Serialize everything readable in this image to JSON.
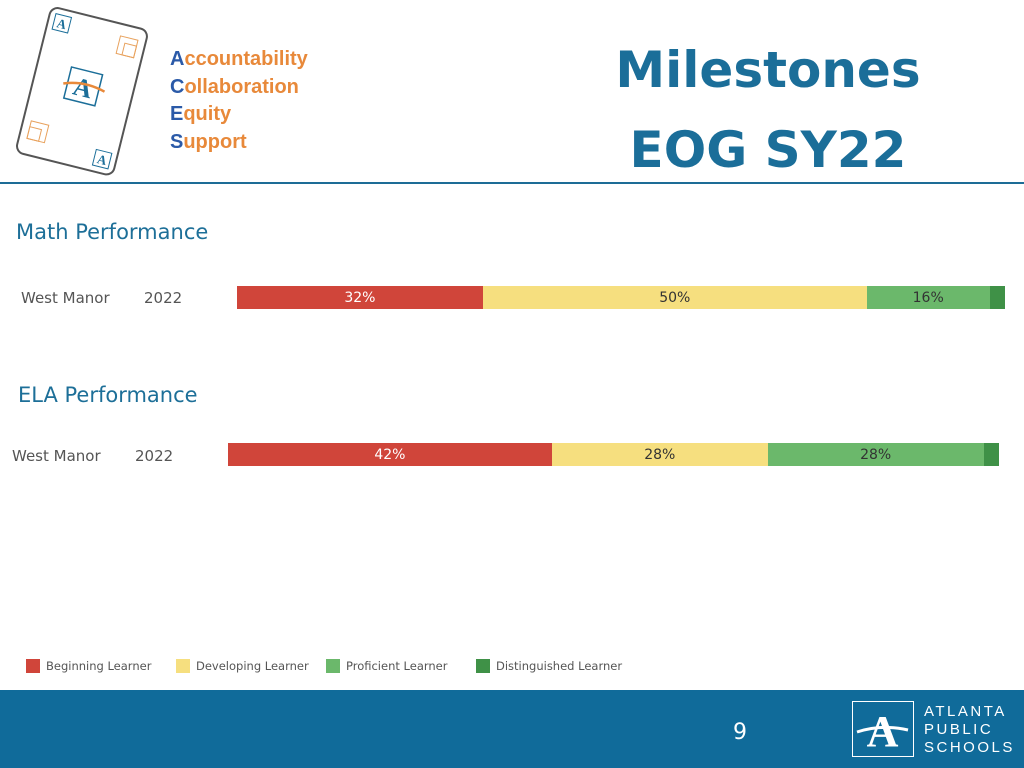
{
  "header": {
    "acronym": [
      {
        "initial": "A",
        "rest": "ccountability"
      },
      {
        "initial": "C",
        "rest": "ollaboration"
      },
      {
        "initial": "E",
        "rest": "quity"
      },
      {
        "initial": "S",
        "rest": "upport"
      }
    ],
    "title_line1": "Milestones",
    "title_line2": "EOG SY22"
  },
  "sections": [
    {
      "title": "Math Performance",
      "school": "West Manor",
      "year": "2022"
    },
    {
      "title": "ELA Performance",
      "school": "West Manor",
      "year": "2022"
    }
  ],
  "chart_data": [
    {
      "type": "bar",
      "orientation": "horizontal-stacked-100",
      "title": "Math Performance",
      "categories": [
        "West Manor 2022"
      ],
      "series": [
        {
          "name": "Beginning Learner",
          "values": [
            32
          ],
          "label": "32%"
        },
        {
          "name": "Developing Learner",
          "values": [
            50
          ],
          "label": "50%"
        },
        {
          "name": "Proficient Learner",
          "values": [
            16
          ],
          "label": "16%"
        },
        {
          "name": "Distinguished Learner",
          "values": [
            2
          ],
          "label": ""
        }
      ]
    },
    {
      "type": "bar",
      "orientation": "horizontal-stacked-100",
      "title": "ELA Performance",
      "categories": [
        "West Manor 2022"
      ],
      "series": [
        {
          "name": "Beginning Learner",
          "values": [
            42
          ],
          "label": "42%"
        },
        {
          "name": "Developing Learner",
          "values": [
            28
          ],
          "label": "28%"
        },
        {
          "name": "Proficient Learner",
          "values": [
            28
          ],
          "label": "28%"
        },
        {
          "name": "Distinguished Learner",
          "values": [
            2
          ],
          "label": ""
        }
      ]
    }
  ],
  "legend": [
    {
      "label": "Beginning Learner",
      "color": "#d0453a"
    },
    {
      "label": "Developing Learner",
      "color": "#f6df7f"
    },
    {
      "label": "Proficient Learner",
      "color": "#6bb86b"
    },
    {
      "label": "Distinguished Learner",
      "color": "#3f9147"
    }
  ],
  "footer": {
    "page_number": "9",
    "logo_line1": "ATLANTA",
    "logo_line2": "PUBLIC",
    "logo_line3": "SCHOOLS"
  }
}
